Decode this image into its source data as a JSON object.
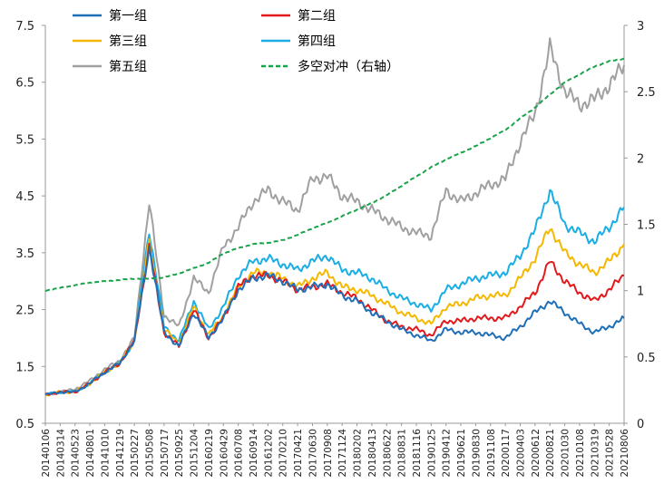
{
  "chart_data": {
    "type": "line",
    "x": [
      "20140106",
      "20140314",
      "20140523",
      "20140801",
      "20141010",
      "20141219",
      "20150227",
      "20150508",
      "20150717",
      "20150925",
      "20151204",
      "20160219",
      "20160429",
      "20160708",
      "20160914",
      "20161202",
      "20170210",
      "20170421",
      "20170630",
      "20170908",
      "20171124",
      "20180202",
      "20180413",
      "20180622",
      "20180831",
      "20181116",
      "20190125",
      "20190412",
      "20190621",
      "20190830",
      "20191108",
      "20200117",
      "20200403",
      "20200612",
      "20200821",
      "20201030",
      "20210108",
      "20210319",
      "20210528",
      "20210806"
    ],
    "y_left_ticks": [
      "0.5",
      "1.5",
      "2.5",
      "3.5",
      "4.5",
      "5.5",
      "6.5",
      "7.5"
    ],
    "y_right_ticks": [
      "0",
      "0.5",
      "1",
      "1.5",
      "2",
      "2.5",
      "3"
    ],
    "ylim_left": [
      0.5,
      7.5
    ],
    "ylim_right": [
      0,
      3
    ],
    "legend_placement": "top-left",
    "grid": false,
    "series": [
      {
        "name": "第一组",
        "axis": "left",
        "color": "#1f6fb8",
        "dashed": false,
        "values": [
          1.0,
          1.05,
          1.05,
          1.2,
          1.4,
          1.55,
          1.95,
          3.6,
          2.1,
          1.85,
          2.45,
          2.0,
          2.35,
          2.85,
          3.05,
          3.1,
          3.0,
          2.85,
          2.9,
          2.95,
          2.75,
          2.65,
          2.45,
          2.3,
          2.15,
          2.05,
          1.95,
          2.15,
          2.1,
          2.1,
          2.05,
          2.0,
          2.2,
          2.45,
          2.65,
          2.45,
          2.25,
          2.1,
          2.2,
          2.35
        ]
      },
      {
        "name": "第二组",
        "axis": "left",
        "color": "#e31a1c",
        "dashed": false,
        "values": [
          1.0,
          1.05,
          1.05,
          1.2,
          1.4,
          1.55,
          1.95,
          3.6,
          2.1,
          1.85,
          2.5,
          2.0,
          2.35,
          2.9,
          3.1,
          3.1,
          3.0,
          2.85,
          2.9,
          2.95,
          2.8,
          2.7,
          2.5,
          2.3,
          2.2,
          2.15,
          2.05,
          2.3,
          2.3,
          2.35,
          2.35,
          2.35,
          2.55,
          2.8,
          3.35,
          3.0,
          2.8,
          2.65,
          2.85,
          3.1
        ]
      },
      {
        "name": "第三组",
        "axis": "left",
        "color": "#f5b800",
        "dashed": false,
        "values": [
          1.0,
          1.05,
          1.05,
          1.2,
          1.4,
          1.55,
          1.95,
          3.7,
          2.15,
          1.9,
          2.55,
          2.05,
          2.4,
          2.9,
          3.15,
          3.15,
          3.05,
          2.9,
          3.05,
          3.15,
          2.9,
          2.85,
          2.75,
          2.6,
          2.45,
          2.35,
          2.25,
          2.55,
          2.6,
          2.7,
          2.75,
          2.75,
          3.05,
          3.4,
          3.95,
          3.5,
          3.3,
          3.15,
          3.35,
          3.65
        ]
      },
      {
        "name": "第四组",
        "axis": "left",
        "color": "#1aaee5",
        "dashed": false,
        "values": [
          1.0,
          1.05,
          1.05,
          1.2,
          1.4,
          1.55,
          1.95,
          3.9,
          2.2,
          1.95,
          2.65,
          2.15,
          2.55,
          3.1,
          3.35,
          3.4,
          3.3,
          3.2,
          3.35,
          3.45,
          3.2,
          3.15,
          3.05,
          2.85,
          2.7,
          2.6,
          2.5,
          2.85,
          2.95,
          3.05,
          3.1,
          3.15,
          3.45,
          3.9,
          4.6,
          4.0,
          3.85,
          3.7,
          3.95,
          4.3
        ]
      },
      {
        "name": "第五组",
        "axis": "left",
        "color": "#a0a0a0",
        "dashed": false,
        "values": [
          1.0,
          1.05,
          1.1,
          1.25,
          1.45,
          1.6,
          2.0,
          4.4,
          2.4,
          2.2,
          3.05,
          2.8,
          3.6,
          3.95,
          4.4,
          4.6,
          4.4,
          4.25,
          4.8,
          4.85,
          4.5,
          4.4,
          4.25,
          4.1,
          3.95,
          3.85,
          3.8,
          4.6,
          4.4,
          4.55,
          4.7,
          4.8,
          5.45,
          5.95,
          7.1,
          6.35,
          6.1,
          6.2,
          6.45,
          6.8
        ]
      },
      {
        "name": "多空对冲（右轴）",
        "axis": "right",
        "color": "#1aa34a",
        "dashed": true,
        "values": [
          1.0,
          1.02,
          1.04,
          1.06,
          1.07,
          1.08,
          1.09,
          1.09,
          1.1,
          1.13,
          1.17,
          1.21,
          1.28,
          1.32,
          1.35,
          1.36,
          1.38,
          1.42,
          1.47,
          1.51,
          1.56,
          1.61,
          1.66,
          1.72,
          1.79,
          1.86,
          1.93,
          1.99,
          2.04,
          2.09,
          2.15,
          2.21,
          2.3,
          2.38,
          2.48,
          2.57,
          2.63,
          2.69,
          2.73,
          2.75
        ]
      }
    ]
  }
}
